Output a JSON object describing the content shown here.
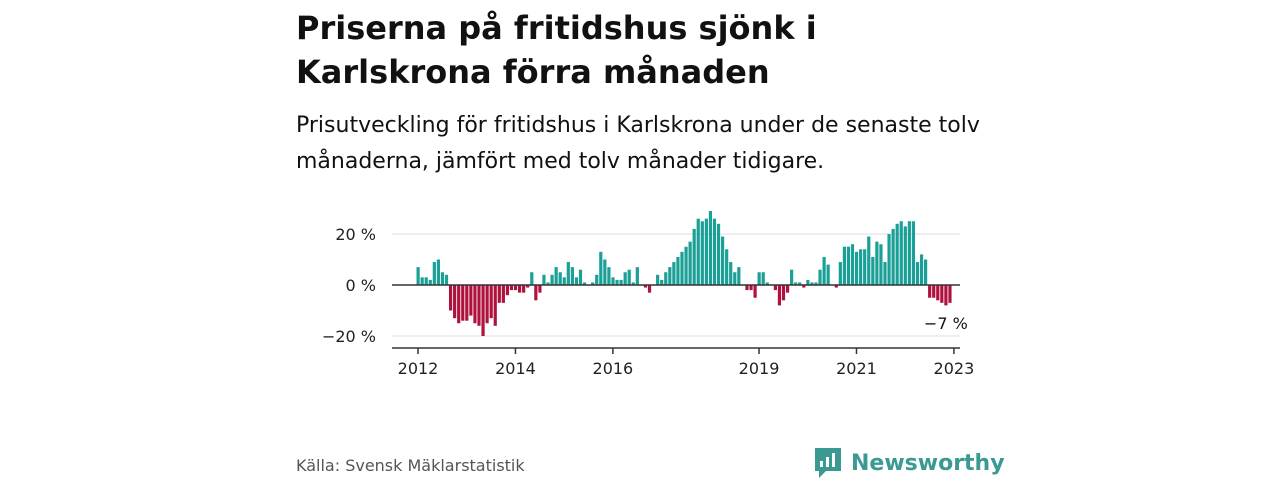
{
  "title": "Priserna på fritidshus sjönk i Karlskrona förra månaden",
  "subtitle": "Prisutveckling för fritidshus i Karlskrona under de senaste tolv månaderna, jämfört med tolv månader tidigare.",
  "source": "Källa: Svensk Mäklarstatistik",
  "brand": {
    "name": "Newsworthy"
  },
  "colors": {
    "positive": "#1aa096",
    "negative": "#b0123e",
    "grid": "#dddddd",
    "zero_line": "#333333"
  },
  "chart_data": {
    "type": "bar",
    "ylim": [
      -23,
      28
    ],
    "y_ticks": [
      {
        "value": 20,
        "label": "20 %"
      },
      {
        "value": 0,
        "label": "0 %"
      },
      {
        "value": -20,
        "label": "−20 %"
      }
    ],
    "x_ticks": [
      {
        "year": 2012,
        "label": "2012"
      },
      {
        "year": 2014,
        "label": "2014"
      },
      {
        "year": 2016,
        "label": "2016"
      },
      {
        "year": 2019,
        "label": "2019"
      },
      {
        "year": 2021,
        "label": "2021"
      },
      {
        "year": 2023,
        "label": "2023"
      }
    ],
    "start": "2012-01",
    "values": [
      7,
      3,
      3,
      2,
      9,
      10,
      5,
      4,
      -10,
      -13,
      -15,
      -14,
      -14,
      -12,
      -15,
      -16,
      -20,
      -15,
      -13,
      -16,
      -7,
      -7,
      -4,
      -2,
      -2,
      -3,
      -3,
      -1,
      5,
      -6,
      -3,
      4,
      1,
      4,
      7,
      5,
      3,
      9,
      7,
      3,
      6,
      1,
      0,
      1,
      4,
      13,
      10,
      7,
      3,
      2,
      2,
      5,
      6,
      1,
      7,
      0,
      -1,
      -3,
      0,
      4,
      2,
      5,
      7,
      9,
      11,
      13,
      15,
      17,
      22,
      26,
      25,
      26,
      29,
      26,
      24,
      19,
      14,
      9,
      5,
      7,
      0,
      -2,
      -2,
      -5,
      5,
      5,
      1,
      0,
      -2,
      -8,
      -6,
      -3,
      6,
      1,
      1,
      -1,
      2,
      1,
      1,
      6,
      11,
      8,
      0,
      -1,
      9,
      15,
      15,
      16,
      13,
      14,
      14,
      19,
      11,
      17,
      16,
      9,
      20,
      22,
      24,
      25,
      23,
      25,
      25,
      9,
      12,
      10,
      -5,
      -5,
      -6,
      -7,
      -8,
      -7
    ],
    "end_label": "−7 %"
  }
}
